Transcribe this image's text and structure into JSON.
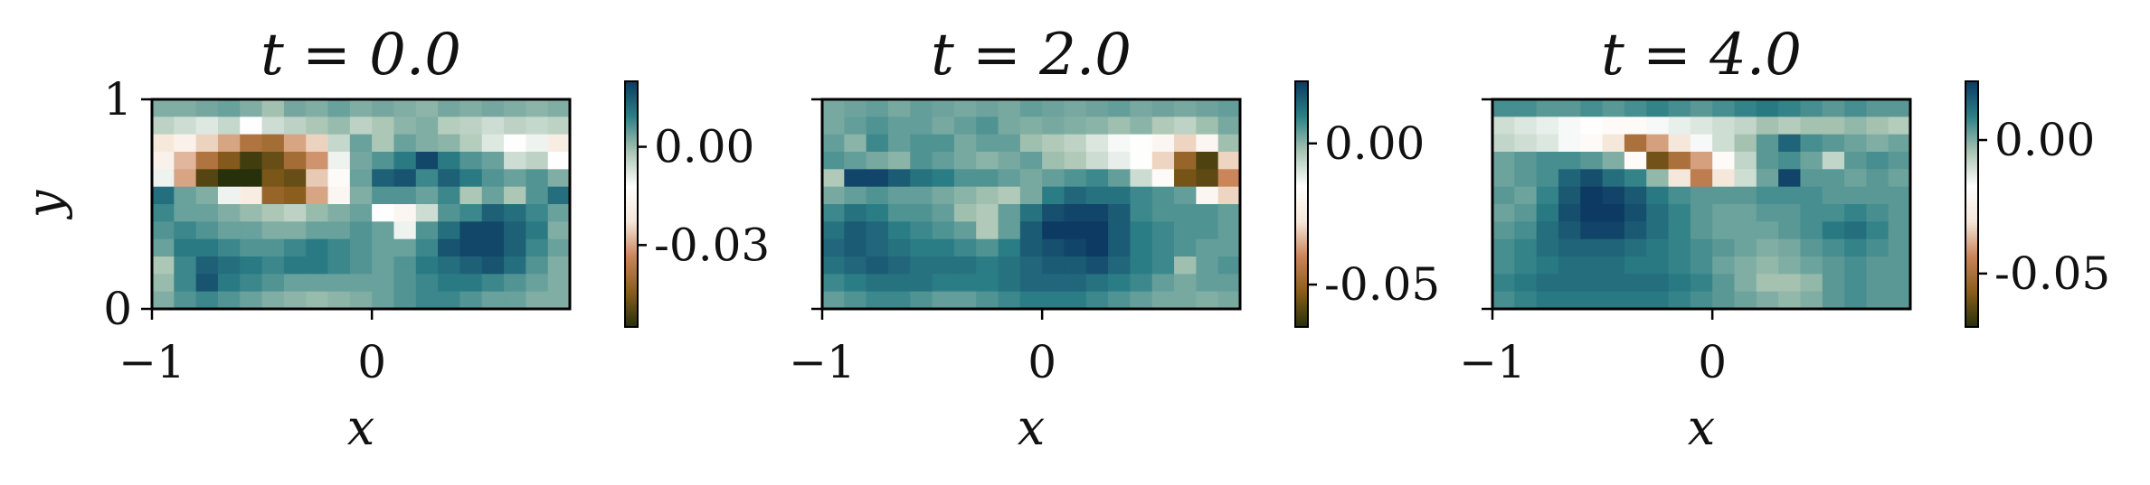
{
  "chart_data": [
    {
      "type": "heatmap",
      "title": "t = 0.0",
      "xlabel": "x",
      "ylabel": "y",
      "xlim": [
        -1,
        0.9
      ],
      "ylim": [
        0,
        1
      ],
      "x_ticks": [
        "−1",
        "0"
      ],
      "y_ticks": [
        "0",
        "1"
      ],
      "colorbar": {
        "vmin": -0.055,
        "vmax": 0.02,
        "ticks": [
          "0.00",
          "-0.03"
        ],
        "tick_values": [
          0.0,
          -0.03
        ]
      },
      "grid_rows_top_to_bottom": [
        [
          0.002,
          0.002,
          0.003,
          0.004,
          0.002,
          -0.001,
          0.003,
          0.002,
          0.004,
          0.002,
          0.003,
          0.002,
          0.001,
          0.003,
          0.002,
          0.003,
          0.002,
          0.001,
          0.002
        ],
        [
          -0.004,
          -0.006,
          -0.008,
          -0.005,
          -0.012,
          -0.006,
          -0.004,
          -0.002,
          0.0,
          -0.004,
          -0.002,
          0.001,
          0.002,
          -0.003,
          -0.004,
          -0.006,
          -0.004,
          -0.005,
          -0.004
        ],
        [
          -0.022,
          -0.018,
          -0.025,
          -0.03,
          -0.038,
          -0.04,
          -0.03,
          -0.025,
          -0.005,
          0.004,
          -0.002,
          0.004,
          0.002,
          0.001,
          -0.003,
          -0.008,
          -0.012,
          -0.01,
          -0.02
        ],
        [
          -0.018,
          -0.028,
          -0.038,
          -0.045,
          -0.052,
          -0.048,
          -0.04,
          -0.032,
          -0.01,
          0.003,
          0.006,
          0.01,
          0.018,
          0.01,
          0.006,
          0.004,
          -0.006,
          -0.004,
          -0.012
        ],
        [
          -0.01,
          -0.03,
          -0.05,
          -0.058,
          -0.058,
          -0.046,
          -0.048,
          -0.026,
          -0.014,
          0.004,
          0.014,
          0.016,
          0.008,
          0.014,
          0.01,
          0.006,
          0.004,
          0.006,
          0.002
        ],
        [
          0.012,
          0.004,
          0.002,
          -0.01,
          -0.02,
          -0.042,
          -0.044,
          -0.03,
          -0.016,
          0.002,
          0.006,
          0.006,
          0.004,
          0.008,
          -0.002,
          0.004,
          -0.002,
          0.006,
          0.012
        ],
        [
          0.008,
          0.004,
          0.004,
          0.002,
          0.0,
          -0.002,
          -0.004,
          0.0,
          0.002,
          0.004,
          -0.012,
          -0.016,
          -0.006,
          0.006,
          0.008,
          0.014,
          0.012,
          0.008,
          0.004
        ],
        [
          0.006,
          0.008,
          0.006,
          0.004,
          0.004,
          0.002,
          0.002,
          0.004,
          0.004,
          0.006,
          0.004,
          -0.01,
          0.006,
          0.012,
          0.018,
          0.018,
          0.014,
          0.01,
          0.002
        ],
        [
          0.004,
          0.01,
          0.01,
          0.008,
          0.006,
          0.006,
          0.008,
          0.01,
          0.008,
          0.006,
          0.004,
          0.004,
          0.008,
          0.016,
          0.018,
          0.018,
          0.014,
          0.008,
          0.004
        ],
        [
          -0.002,
          0.008,
          0.014,
          0.012,
          0.01,
          0.008,
          0.01,
          0.01,
          0.008,
          0.006,
          0.004,
          0.006,
          0.01,
          0.012,
          0.014,
          0.016,
          0.012,
          0.006,
          0.002
        ],
        [
          0.0,
          0.008,
          0.016,
          0.01,
          0.008,
          0.006,
          0.004,
          0.004,
          0.004,
          0.004,
          0.004,
          0.006,
          0.008,
          0.01,
          0.01,
          0.008,
          0.006,
          0.004,
          0.002
        ],
        [
          0.002,
          0.006,
          0.008,
          0.006,
          0.004,
          0.002,
          0.001,
          0.0,
          0.001,
          0.002,
          0.004,
          0.006,
          0.008,
          0.008,
          0.006,
          0.004,
          0.004,
          0.002,
          0.002
        ]
      ]
    },
    {
      "type": "heatmap",
      "title": "t = 2.0",
      "xlabel": "x",
      "ylabel": "",
      "xlim": [
        -1,
        0.9
      ],
      "ylim": [
        0,
        1
      ],
      "x_ticks": [
        "−1",
        "0"
      ],
      "y_ticks": [
        "",
        ""
      ],
      "colorbar": {
        "vmin": -0.065,
        "vmax": 0.022,
        "ticks": [
          "0.00",
          "-0.05"
        ],
        "tick_values": [
          0.0,
          -0.05
        ]
      },
      "grid_rows_top_to_bottom": [
        [
          0.002,
          0.003,
          0.004,
          0.002,
          0.004,
          0.003,
          0.002,
          0.003,
          0.002,
          0.004,
          0.003,
          0.002,
          0.003,
          0.004,
          0.002,
          0.003,
          0.002,
          0.003,
          0.004
        ],
        [
          0.002,
          0.004,
          0.006,
          0.004,
          0.004,
          0.002,
          0.004,
          0.006,
          0.002,
          0.001,
          0.002,
          0.001,
          0.0,
          -0.002,
          0.0,
          -0.004,
          -0.006,
          -0.002,
          0.002
        ],
        [
          0.004,
          0.0,
          0.008,
          0.004,
          0.006,
          0.006,
          0.002,
          0.004,
          0.004,
          -0.002,
          -0.004,
          -0.006,
          -0.01,
          -0.014,
          -0.016,
          -0.02,
          -0.03,
          -0.02,
          -0.002
        ],
        [
          0.006,
          0.004,
          0.002,
          0.0,
          0.006,
          0.004,
          0.002,
          0.0,
          0.002,
          0.004,
          -0.002,
          -0.004,
          -0.008,
          -0.012,
          -0.016,
          -0.03,
          -0.05,
          -0.06,
          -0.03
        ],
        [
          -0.004,
          0.02,
          0.02,
          0.016,
          0.012,
          0.01,
          0.006,
          0.006,
          0.004,
          0.002,
          0.004,
          0.006,
          0.008,
          0.004,
          -0.008,
          -0.018,
          -0.055,
          -0.058,
          -0.04
        ],
        [
          0.002,
          0.004,
          0.006,
          0.004,
          0.004,
          0.002,
          0.0,
          -0.002,
          -0.004,
          0.002,
          0.01,
          0.014,
          0.012,
          0.012,
          0.008,
          0.006,
          0.004,
          -0.02,
          -0.03
        ],
        [
          0.008,
          0.012,
          0.01,
          0.006,
          0.006,
          0.004,
          -0.002,
          -0.004,
          0.004,
          0.012,
          0.018,
          0.02,
          0.02,
          0.016,
          0.008,
          0.006,
          0.006,
          0.006,
          0.004
        ],
        [
          0.012,
          0.016,
          0.014,
          0.01,
          0.008,
          0.006,
          0.004,
          -0.004,
          0.004,
          0.016,
          0.022,
          0.024,
          0.022,
          0.016,
          0.01,
          0.008,
          0.006,
          0.006,
          0.004
        ],
        [
          0.014,
          0.016,
          0.014,
          0.012,
          0.01,
          0.01,
          0.008,
          0.006,
          0.01,
          0.016,
          0.018,
          0.02,
          0.022,
          0.016,
          0.01,
          0.008,
          0.006,
          0.004,
          0.004
        ],
        [
          0.012,
          0.014,
          0.016,
          0.014,
          0.012,
          0.012,
          0.012,
          0.01,
          0.012,
          0.014,
          0.016,
          0.016,
          0.018,
          0.014,
          0.01,
          0.008,
          -0.002,
          0.004,
          0.006
        ],
        [
          0.008,
          0.01,
          0.012,
          0.012,
          0.012,
          0.01,
          0.01,
          0.01,
          0.012,
          0.014,
          0.014,
          0.014,
          0.012,
          0.01,
          0.008,
          0.004,
          0.002,
          0.004,
          0.004
        ],
        [
          0.004,
          0.006,
          0.008,
          0.008,
          0.006,
          0.004,
          0.004,
          0.006,
          0.008,
          0.01,
          0.01,
          0.01,
          0.008,
          0.006,
          0.004,
          0.002,
          0.002,
          0.001,
          0.002
        ]
      ]
    },
    {
      "type": "heatmap",
      "title": "t = 4.0",
      "xlabel": "x",
      "ylabel": "",
      "xlim": [
        -1,
        0.9
      ],
      "ylim": [
        0,
        1
      ],
      "x_ticks": [
        "−1",
        "0"
      ],
      "y_ticks": [
        "",
        ""
      ],
      "colorbar": {
        "vmin": -0.07,
        "vmax": 0.022,
        "ticks": [
          "0.00",
          "-0.05"
        ],
        "tick_values": [
          0.0,
          -0.05
        ]
      },
      "grid_rows_top_to_bottom": [
        [
          0.006,
          0.006,
          0.004,
          0.004,
          0.006,
          0.004,
          0.006,
          0.008,
          0.006,
          0.004,
          0.006,
          0.008,
          0.01,
          0.008,
          0.006,
          0.004,
          0.006,
          0.004,
          0.004
        ],
        [
          -0.01,
          -0.012,
          -0.014,
          -0.016,
          -0.018,
          -0.02,
          -0.02,
          -0.016,
          -0.014,
          -0.012,
          -0.01,
          -0.008,
          -0.004,
          -0.006,
          -0.004,
          -0.004,
          -0.002,
          -0.004,
          -0.006
        ],
        [
          -0.008,
          -0.01,
          -0.012,
          -0.016,
          -0.02,
          -0.03,
          -0.05,
          -0.04,
          -0.03,
          -0.016,
          -0.01,
          -0.004,
          0.004,
          0.014,
          0.006,
          0.004,
          0.002,
          0.0,
          0.002
        ],
        [
          0.002,
          0.004,
          0.006,
          0.006,
          0.004,
          0.0,
          -0.02,
          -0.06,
          -0.05,
          -0.04,
          -0.02,
          -0.008,
          0.004,
          0.006,
          0.002,
          -0.008,
          0.004,
          0.006,
          0.004
        ],
        [
          0.002,
          0.004,
          0.006,
          0.014,
          0.018,
          0.012,
          0.008,
          -0.002,
          -0.03,
          -0.046,
          -0.03,
          -0.01,
          0.002,
          0.02,
          0.004,
          0.004,
          0.002,
          0.004,
          0.002
        ],
        [
          0.004,
          0.002,
          0.008,
          0.016,
          0.022,
          0.02,
          0.016,
          0.01,
          0.006,
          0.004,
          0.004,
          0.004,
          0.006,
          0.006,
          0.006,
          0.004,
          0.004,
          0.004,
          0.004
        ],
        [
          0.002,
          0.004,
          0.01,
          0.018,
          0.022,
          0.022,
          0.018,
          0.012,
          0.008,
          0.004,
          0.002,
          0.002,
          0.004,
          0.004,
          0.006,
          0.006,
          0.008,
          0.006,
          0.004
        ],
        [
          0.004,
          0.006,
          0.012,
          0.016,
          0.02,
          0.02,
          0.016,
          0.012,
          0.008,
          0.004,
          0.002,
          0.002,
          0.002,
          0.004,
          0.006,
          0.01,
          0.012,
          0.008,
          0.004
        ],
        [
          0.006,
          0.008,
          0.012,
          0.014,
          0.014,
          0.014,
          0.012,
          0.01,
          0.008,
          0.006,
          0.004,
          0.002,
          0.0,
          0.001,
          0.004,
          0.006,
          0.008,
          0.006,
          0.004
        ],
        [
          0.006,
          0.008,
          0.01,
          0.012,
          0.012,
          0.012,
          0.01,
          0.01,
          0.008,
          0.006,
          0.002,
          0.0,
          -0.002,
          0.0,
          0.002,
          0.004,
          0.006,
          0.004,
          0.004
        ],
        [
          0.008,
          0.01,
          0.012,
          0.012,
          0.012,
          0.012,
          0.012,
          0.012,
          0.01,
          0.008,
          0.004,
          0.0,
          -0.004,
          -0.004,
          -0.002,
          0.004,
          0.006,
          0.004,
          0.004
        ],
        [
          0.006,
          0.008,
          0.01,
          0.01,
          0.01,
          0.01,
          0.01,
          0.01,
          0.008,
          0.006,
          0.004,
          0.002,
          0.0,
          -0.002,
          0.0,
          0.004,
          0.006,
          0.004,
          0.004
        ]
      ]
    }
  ],
  "colormap": [
    "#26300a",
    "#8a5d1c",
    "#c9845a",
    "#f5e7d9",
    "#ffffff",
    "#a8c4b2",
    "#2c7f86",
    "#0c3a63"
  ]
}
